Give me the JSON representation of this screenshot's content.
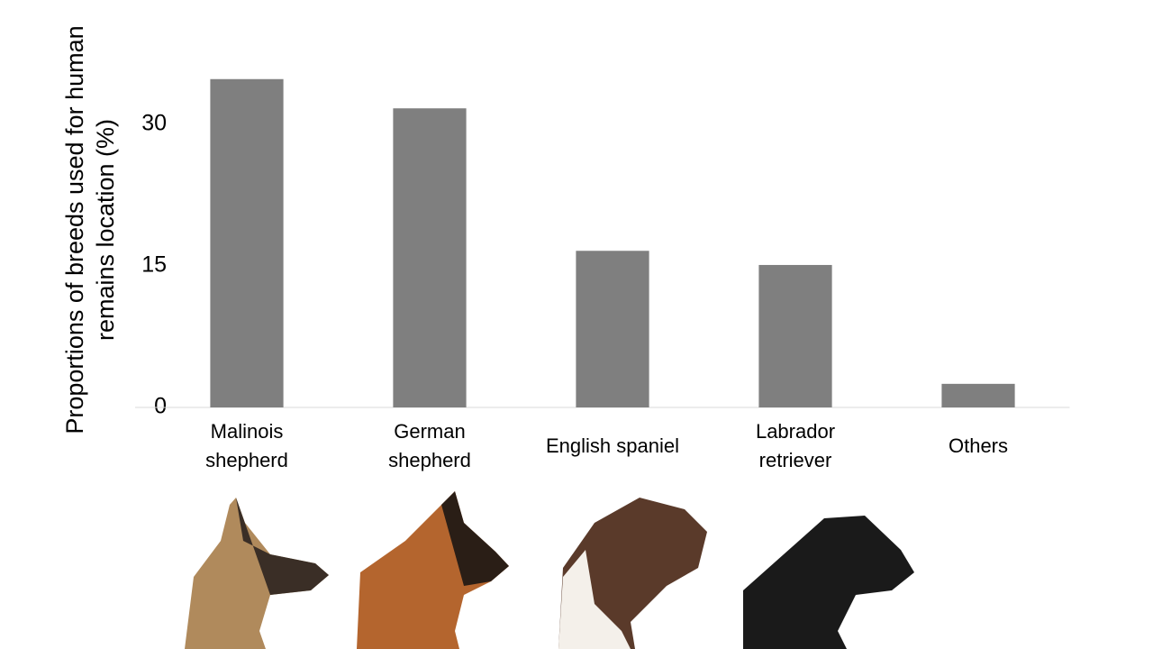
{
  "chart_data": {
    "type": "bar",
    "y_label": "Proportions of breeds used for human\nremains location (%)",
    "categories": [
      "Malinois\nshepherd",
      "German\nshepherd",
      "English spaniel",
      "Labrador\nretriever",
      "Others"
    ],
    "values": [
      34.8,
      31.7,
      16.6,
      15.1,
      2.5
    ],
    "color": "#7f7f7f",
    "ylim": [
      0,
      36
    ],
    "yticks": [
      0,
      15,
      30
    ],
    "grid": false
  }
}
